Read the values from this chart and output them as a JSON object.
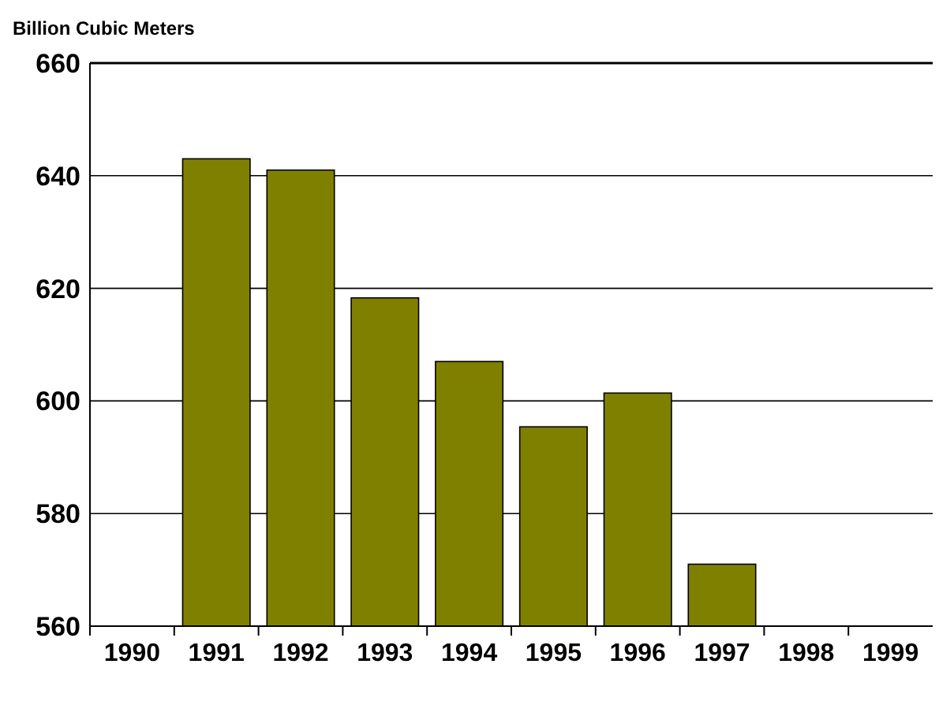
{
  "chart_data": {
    "type": "bar",
    "ylabel": "Billion Cubic Meters",
    "categories": [
      "1990",
      "1991",
      "1992",
      "1993",
      "1994",
      "1995",
      "1996",
      "1997",
      "1998",
      "1999"
    ],
    "values": [
      null,
      643,
      641,
      618.3,
      607,
      595.4,
      601.4,
      571,
      null,
      null
    ],
    "color": "#808000",
    "ylim": [
      560,
      660
    ],
    "yticks": [
      560,
      580,
      600,
      620,
      640,
      660
    ],
    "grid": "y"
  }
}
